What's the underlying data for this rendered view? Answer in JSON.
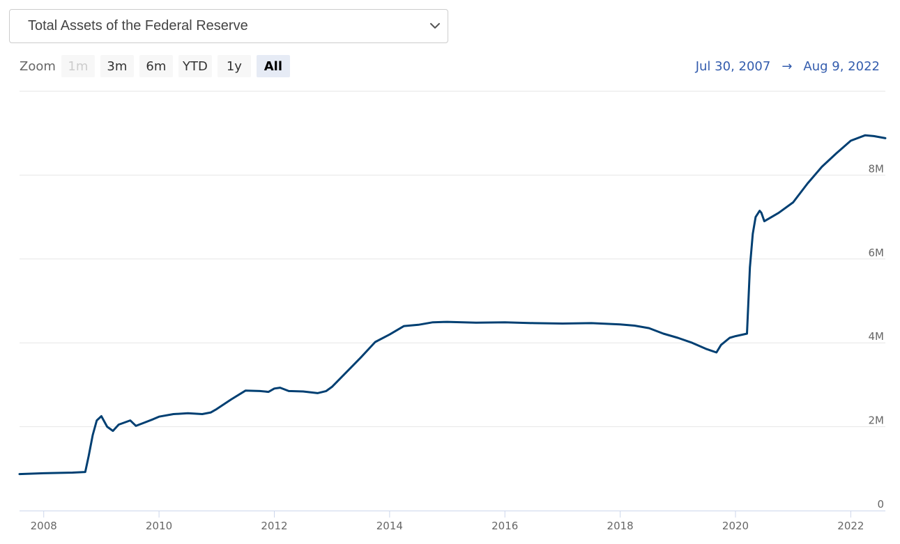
{
  "series_selector": {
    "selected": "Total Assets of the Federal Reserve"
  },
  "zoom": {
    "label": "Zoom",
    "buttons": [
      {
        "label": "1m",
        "state": "disabled"
      },
      {
        "label": "3m",
        "state": "normal"
      },
      {
        "label": "6m",
        "state": "normal"
      },
      {
        "label": "YTD",
        "state": "normal"
      },
      {
        "label": "1y",
        "state": "normal"
      },
      {
        "label": "All",
        "state": "active"
      }
    ]
  },
  "date_range": {
    "from": "Jul 30, 2007",
    "arrow": "→",
    "to": "Aug 9, 2022"
  },
  "chart_data": {
    "type": "line",
    "title": "",
    "xlabel": "",
    "ylabel": "",
    "xlim": [
      2007.58,
      2022.6
    ],
    "ylim": [
      0,
      10000000
    ],
    "x_ticks": [
      "2008",
      "2010",
      "2012",
      "2014",
      "2016",
      "2018",
      "2020",
      "2022"
    ],
    "y_ticks": [
      "0",
      "2M",
      "4M",
      "6M",
      "8M"
    ],
    "grid": "horizontal",
    "line_color": "#003f72",
    "series": [
      {
        "x": [
          2007.58,
          2008.0,
          2008.5,
          2008.72,
          2008.78,
          2008.85,
          2008.92,
          2009.0,
          2009.1,
          2009.2,
          2009.3,
          2009.4,
          2009.5,
          2009.6,
          2009.75,
          2009.9,
          2010.0,
          2010.25,
          2010.5,
          2010.75,
          2010.9,
          2011.0,
          2011.25,
          2011.5,
          2011.75,
          2011.9,
          2012.0,
          2012.1,
          2012.25,
          2012.5,
          2012.75,
          2012.9,
          2013.0,
          2013.25,
          2013.5,
          2013.75,
          2014.0,
          2014.25,
          2014.5,
          2014.75,
          2015.0,
          2015.5,
          2016.0,
          2016.5,
          2017.0,
          2017.5,
          2018.0,
          2018.25,
          2018.5,
          2018.75,
          2019.0,
          2019.25,
          2019.5,
          2019.67,
          2019.75,
          2019.9,
          2020.0,
          2020.2,
          2020.25,
          2020.3,
          2020.35,
          2020.42,
          2020.45,
          2020.5,
          2020.6,
          2020.75,
          2021.0,
          2021.25,
          2021.5,
          2021.75,
          2022.0,
          2022.25,
          2022.4,
          2022.6
        ],
        "y": [
          870000,
          890000,
          905000,
          920000,
          1300000,
          1800000,
          2150000,
          2250000,
          2000000,
          1900000,
          2050000,
          2100000,
          2150000,
          2020000,
          2100000,
          2180000,
          2240000,
          2300000,
          2320000,
          2300000,
          2340000,
          2420000,
          2650000,
          2860000,
          2850000,
          2830000,
          2910000,
          2930000,
          2850000,
          2840000,
          2800000,
          2850000,
          2950000,
          3300000,
          3650000,
          4020000,
          4200000,
          4400000,
          4430000,
          4490000,
          4500000,
          4480000,
          4490000,
          4470000,
          4460000,
          4470000,
          4440000,
          4410000,
          4350000,
          4220000,
          4120000,
          4000000,
          3850000,
          3770000,
          3950000,
          4120000,
          4160000,
          4220000,
          5800000,
          6600000,
          7000000,
          7150000,
          7100000,
          6900000,
          6980000,
          7100000,
          7350000,
          7800000,
          8200000,
          8520000,
          8820000,
          8950000,
          8930000,
          8880000
        ]
      }
    ]
  }
}
